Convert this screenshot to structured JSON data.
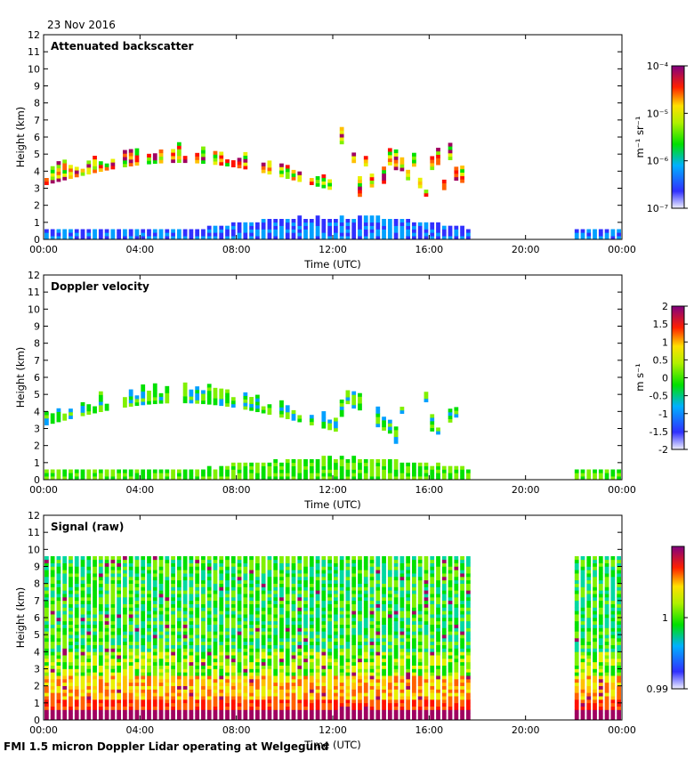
{
  "date_label": "23 Nov 2016",
  "footer": "FMI 1.5 micron Doppler Lidar operating at Welgegund",
  "chart_data": [
    {
      "type": "heatmap",
      "title": "Attenuated backscatter",
      "xlabel": "Time (UTC)",
      "ylabel": "Height (km)",
      "xticks": [
        "00:00",
        "04:00",
        "08:00",
        "12:00",
        "16:00",
        "20:00",
        "00:00"
      ],
      "xlim_hours": [
        0,
        24
      ],
      "yticks": [
        "0",
        "1",
        "2",
        "3",
        "4",
        "5",
        "6",
        "7",
        "8",
        "9",
        "10",
        "11",
        "12"
      ],
      "ylim_km": [
        0,
        12
      ],
      "colorbar": {
        "unit": "m⁻¹ sr⁻¹",
        "ticks": [
          "10⁻⁷",
          "10⁻⁶",
          "10⁻⁵",
          "10⁻⁴"
        ],
        "tick_values": [
          1e-07,
          1e-06,
          1e-05,
          0.0001
        ],
        "scale": "log",
        "range": [
          1e-07,
          0.0001
        ]
      },
      "data_gap_hours": [
        17.5,
        22.0
      ]
    },
    {
      "type": "heatmap",
      "title": "Doppler velocity",
      "xlabel": "Time (UTC)",
      "ylabel": "Height (km)",
      "xticks": [
        "00:00",
        "04:00",
        "08:00",
        "12:00",
        "16:00",
        "20:00",
        "00:00"
      ],
      "xlim_hours": [
        0,
        24
      ],
      "yticks": [
        "0",
        "1",
        "2",
        "3",
        "4",
        "5",
        "6",
        "7",
        "8",
        "9",
        "10",
        "11",
        "12"
      ],
      "ylim_km": [
        0,
        12
      ],
      "colorbar": {
        "unit": "m s⁻¹",
        "ticks": [
          "2",
          "1.5",
          "1",
          "0.5",
          "0",
          "-0.5",
          "-1",
          "-1.5",
          "-2"
        ],
        "tick_values": [
          2,
          1.5,
          1,
          0.5,
          0,
          -0.5,
          -1,
          -1.5,
          -2
        ],
        "scale": "linear",
        "range": [
          -2,
          2
        ]
      },
      "data_gap_hours": [
        17.5,
        22.0
      ]
    },
    {
      "type": "heatmap",
      "title": "Signal (raw)",
      "xlabel": "Time (UTC)",
      "ylabel": "Height (km)",
      "xticks": [
        "00:00",
        "04:00",
        "08:00",
        "12:00",
        "16:00",
        "20:00",
        "00:00"
      ],
      "xlim_hours": [
        0,
        24
      ],
      "yticks": [
        "0",
        "1",
        "2",
        "3",
        "4",
        "5",
        "6",
        "7",
        "8",
        "9",
        "10",
        "11",
        "12"
      ],
      "ylim_km": [
        0,
        12
      ],
      "colorbar": {
        "unit": "",
        "ticks": [
          "1",
          "0.99"
        ],
        "tick_values": [
          1,
          0.99
        ],
        "scale": "linear",
        "range": [
          0.99,
          1.01
        ]
      },
      "data_gap_hours": [
        17.5,
        22.0
      ]
    }
  ]
}
